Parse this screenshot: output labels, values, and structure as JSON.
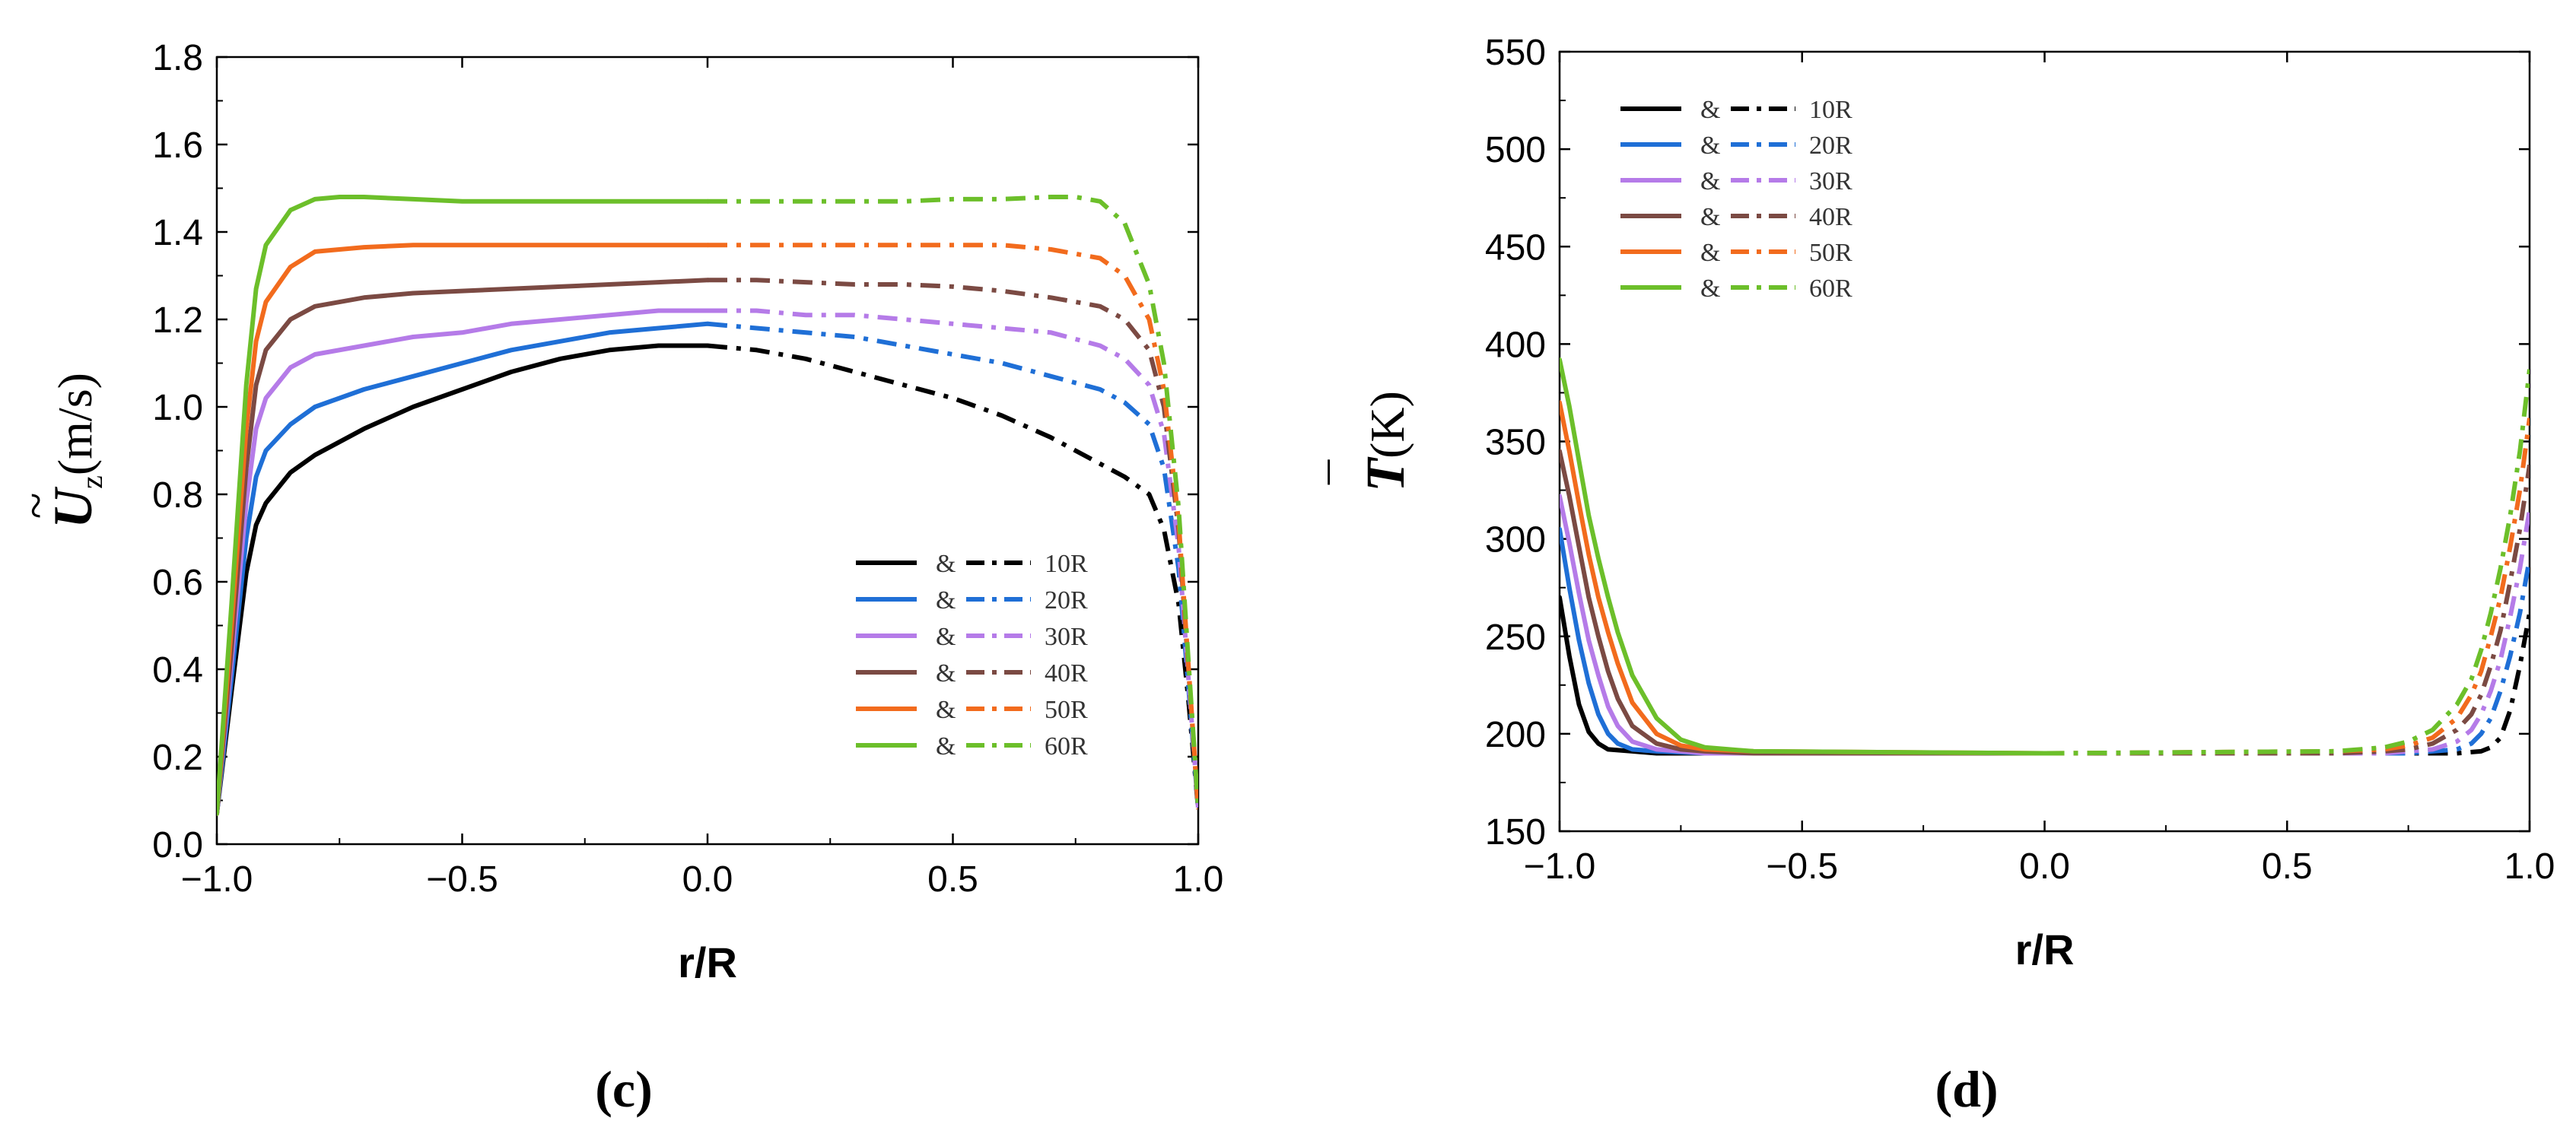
{
  "chart_data": [
    {
      "type": "line",
      "panel_label": "(c)",
      "xlabel": "r/R",
      "ylabel": {
        "symbol": "U",
        "accent": "~",
        "subscript": "z",
        "unit": "(m/s)"
      },
      "xlim": [
        -1.0,
        1.0
      ],
      "ylim": [
        0.0,
        1.8
      ],
      "xticks": [
        "−1.0",
        "−0.5",
        "0.0",
        "0.5",
        "1.0"
      ],
      "xtick_values": [
        -1.0,
        -0.5,
        0.0,
        0.5,
        1.0
      ],
      "yticks": [
        "0.0",
        "0.2",
        "0.4",
        "0.6",
        "0.8",
        "1.0",
        "1.2",
        "1.4",
        "1.6",
        "1.8"
      ],
      "ytick_values": [
        0.0,
        0.2,
        0.4,
        0.6,
        0.8,
        1.0,
        1.2,
        1.4,
        1.6,
        1.8
      ],
      "legend_position": "lower-right",
      "legend_separator": "&",
      "note": "solid line for r/R < 0, dash-dot line for r/R > 0",
      "series": [
        {
          "name": "10R",
          "color": "#000000",
          "x": [
            -1.0,
            -0.97,
            -0.94,
            -0.92,
            -0.9,
            -0.85,
            -0.8,
            -0.7,
            -0.6,
            -0.5,
            -0.4,
            -0.3,
            -0.2,
            -0.1,
            0.0,
            0.1,
            0.2,
            0.3,
            0.4,
            0.5,
            0.6,
            0.7,
            0.8,
            0.85,
            0.9,
            0.93,
            0.96,
            0.98,
            1.0
          ],
          "y": [
            0.07,
            0.35,
            0.62,
            0.73,
            0.78,
            0.85,
            0.89,
            0.95,
            1.0,
            1.04,
            1.08,
            1.11,
            1.13,
            1.14,
            1.14,
            1.13,
            1.11,
            1.08,
            1.05,
            1.02,
            0.98,
            0.93,
            0.87,
            0.84,
            0.8,
            0.72,
            0.55,
            0.33,
            0.08
          ]
        },
        {
          "name": "20R",
          "color": "#1f6fd6",
          "x": [
            -1.0,
            -0.97,
            -0.94,
            -0.92,
            -0.9,
            -0.85,
            -0.8,
            -0.7,
            -0.6,
            -0.5,
            -0.4,
            -0.3,
            -0.2,
            -0.1,
            0.0,
            0.1,
            0.2,
            0.3,
            0.4,
            0.5,
            0.6,
            0.7,
            0.8,
            0.85,
            0.9,
            0.93,
            0.96,
            0.98,
            1.0
          ],
          "y": [
            0.07,
            0.38,
            0.7,
            0.84,
            0.9,
            0.96,
            1.0,
            1.04,
            1.07,
            1.1,
            1.13,
            1.15,
            1.17,
            1.18,
            1.19,
            1.18,
            1.17,
            1.16,
            1.14,
            1.12,
            1.1,
            1.07,
            1.04,
            1.01,
            0.96,
            0.86,
            0.63,
            0.36,
            0.08
          ]
        },
        {
          "name": "30R",
          "color": "#b57be8",
          "x": [
            -1.0,
            -0.97,
            -0.94,
            -0.92,
            -0.9,
            -0.85,
            -0.8,
            -0.7,
            -0.6,
            -0.5,
            -0.4,
            -0.3,
            -0.2,
            -0.1,
            0.0,
            0.1,
            0.2,
            0.3,
            0.4,
            0.5,
            0.6,
            0.7,
            0.8,
            0.85,
            0.9,
            0.93,
            0.96,
            0.98,
            1.0
          ],
          "y": [
            0.07,
            0.42,
            0.78,
            0.95,
            1.02,
            1.09,
            1.12,
            1.14,
            1.16,
            1.17,
            1.19,
            1.2,
            1.21,
            1.22,
            1.22,
            1.22,
            1.21,
            1.21,
            1.2,
            1.19,
            1.18,
            1.17,
            1.14,
            1.11,
            1.05,
            0.94,
            0.68,
            0.38,
            0.08
          ]
        },
        {
          "name": "40R",
          "color": "#7b4a43",
          "x": [
            -1.0,
            -0.97,
            -0.94,
            -0.92,
            -0.9,
            -0.85,
            -0.8,
            -0.7,
            -0.6,
            -0.5,
            -0.4,
            -0.3,
            -0.2,
            -0.1,
            0.0,
            0.1,
            0.2,
            0.3,
            0.4,
            0.5,
            0.6,
            0.7,
            0.8,
            0.85,
            0.9,
            0.93,
            0.96,
            0.98,
            1.0
          ],
          "y": [
            0.07,
            0.45,
            0.86,
            1.05,
            1.13,
            1.2,
            1.23,
            1.25,
            1.26,
            1.265,
            1.27,
            1.275,
            1.28,
            1.285,
            1.29,
            1.29,
            1.285,
            1.28,
            1.28,
            1.275,
            1.265,
            1.25,
            1.23,
            1.2,
            1.13,
            1.0,
            0.72,
            0.4,
            0.08
          ]
        },
        {
          "name": "50R",
          "color": "#f26b1d",
          "x": [
            -1.0,
            -0.97,
            -0.94,
            -0.92,
            -0.9,
            -0.85,
            -0.8,
            -0.7,
            -0.6,
            -0.5,
            -0.4,
            -0.3,
            -0.2,
            -0.1,
            0.0,
            0.1,
            0.2,
            0.3,
            0.4,
            0.5,
            0.6,
            0.7,
            0.8,
            0.85,
            0.9,
            0.93,
            0.96,
            0.98,
            1.0
          ],
          "y": [
            0.07,
            0.5,
            0.95,
            1.15,
            1.24,
            1.32,
            1.355,
            1.365,
            1.37,
            1.37,
            1.37,
            1.37,
            1.37,
            1.37,
            1.37,
            1.37,
            1.37,
            1.37,
            1.37,
            1.37,
            1.37,
            1.36,
            1.34,
            1.3,
            1.2,
            1.04,
            0.74,
            0.41,
            0.08
          ]
        },
        {
          "name": "60R",
          "color": "#6cbf2a",
          "x": [
            -1.0,
            -0.97,
            -0.94,
            -0.92,
            -0.9,
            -0.85,
            -0.8,
            -0.75,
            -0.7,
            -0.6,
            -0.5,
            -0.4,
            -0.3,
            -0.2,
            -0.1,
            0.0,
            0.1,
            0.2,
            0.3,
            0.4,
            0.5,
            0.6,
            0.7,
            0.75,
            0.8,
            0.85,
            0.9,
            0.93,
            0.96,
            0.98,
            1.0
          ],
          "y": [
            0.07,
            0.55,
            1.05,
            1.27,
            1.37,
            1.45,
            1.475,
            1.48,
            1.48,
            1.475,
            1.47,
            1.47,
            1.47,
            1.47,
            1.47,
            1.47,
            1.47,
            1.47,
            1.47,
            1.47,
            1.475,
            1.475,
            1.48,
            1.48,
            1.47,
            1.42,
            1.28,
            1.1,
            0.77,
            0.42,
            0.08
          ]
        }
      ]
    },
    {
      "type": "line",
      "panel_label": "(d)",
      "xlabel": "r/R",
      "ylabel": {
        "symbol": "T",
        "accent": "¯",
        "unit": "(K)"
      },
      "xlim": [
        -1.0,
        1.0
      ],
      "ylim": [
        150,
        550
      ],
      "xticks": [
        "−1.0",
        "−0.5",
        "0.0",
        "0.5",
        "1.0"
      ],
      "xtick_values": [
        -1.0,
        -0.5,
        0.0,
        0.5,
        1.0
      ],
      "yticks": [
        "150",
        "200",
        "250",
        "300",
        "350",
        "400",
        "450",
        "500",
        "550"
      ],
      "ytick_values": [
        150,
        200,
        250,
        300,
        350,
        400,
        450,
        500,
        550
      ],
      "legend_position": "top-left",
      "legend_separator": "&",
      "note": "solid line for r/R < 0, dash-dot line for r/R > 0",
      "series": [
        {
          "name": "10R",
          "color": "#000000",
          "x": [
            -1.0,
            -0.98,
            -0.96,
            -0.94,
            -0.92,
            -0.9,
            -0.85,
            -0.8,
            -0.7,
            -0.5,
            0.0,
            0.5,
            0.8,
            0.85,
            0.9,
            0.92,
            0.94,
            0.96,
            0.98,
            1.0
          ],
          "y": [
            270,
            240,
            215,
            201,
            195,
            192,
            191,
            190,
            190,
            190,
            190,
            190,
            190,
            190,
            191,
            193,
            198,
            212,
            235,
            262
          ]
        },
        {
          "name": "20R",
          "color": "#1f6fd6",
          "x": [
            -1.0,
            -0.98,
            -0.96,
            -0.94,
            -0.92,
            -0.9,
            -0.88,
            -0.85,
            -0.8,
            -0.7,
            -0.5,
            0.0,
            0.5,
            0.75,
            0.8,
            0.85,
            0.88,
            0.9,
            0.92,
            0.94,
            0.96,
            0.98,
            1.0
          ],
          "y": [
            305,
            275,
            248,
            226,
            210,
            200,
            195,
            192,
            191,
            190,
            190,
            190,
            190,
            190,
            191,
            192,
            195,
            200,
            208,
            222,
            240,
            262,
            290
          ]
        },
        {
          "name": "30R",
          "color": "#b57be8",
          "x": [
            -1.0,
            -0.98,
            -0.96,
            -0.94,
            -0.92,
            -0.9,
            -0.88,
            -0.85,
            -0.8,
            -0.75,
            -0.7,
            -0.5,
            0.0,
            0.5,
            0.7,
            0.75,
            0.8,
            0.85,
            0.88,
            0.9,
            0.92,
            0.94,
            0.96,
            0.98,
            1.0
          ],
          "y": [
            322,
            298,
            272,
            248,
            230,
            214,
            204,
            196,
            192,
            191,
            190,
            190,
            190,
            190,
            190,
            191,
            192,
            196,
            202,
            210,
            222,
            238,
            260,
            285,
            315
          ]
        },
        {
          "name": "40R",
          "color": "#7b4a43",
          "x": [
            -1.0,
            -0.98,
            -0.96,
            -0.94,
            -0.92,
            -0.9,
            -0.88,
            -0.85,
            -0.8,
            -0.75,
            -0.7,
            -0.6,
            0.0,
            0.6,
            0.7,
            0.75,
            0.8,
            0.85,
            0.88,
            0.9,
            0.92,
            0.94,
            0.96,
            0.98,
            1.0
          ],
          "y": [
            345,
            322,
            296,
            270,
            250,
            232,
            218,
            204,
            195,
            192,
            191,
            190,
            190,
            190,
            191,
            192,
            195,
            202,
            210,
            220,
            235,
            253,
            278,
            305,
            338
          ]
        },
        {
          "name": "50R",
          "color": "#f26b1d",
          "x": [
            -1.0,
            -0.98,
            -0.96,
            -0.94,
            -0.92,
            -0.9,
            -0.88,
            -0.85,
            -0.8,
            -0.75,
            -0.7,
            -0.6,
            0.0,
            0.6,
            0.7,
            0.75,
            0.8,
            0.85,
            0.88,
            0.9,
            0.92,
            0.94,
            0.96,
            0.98,
            1.0
          ],
          "y": [
            370,
            345,
            318,
            292,
            270,
            252,
            236,
            216,
            200,
            194,
            192,
            191,
            190,
            191,
            192,
            194,
            198,
            208,
            220,
            232,
            250,
            270,
            296,
            325,
            362
          ]
        },
        {
          "name": "60R",
          "color": "#6cbf2a",
          "x": [
            -1.0,
            -0.98,
            -0.96,
            -0.94,
            -0.92,
            -0.9,
            -0.88,
            -0.85,
            -0.8,
            -0.75,
            -0.7,
            -0.6,
            0.0,
            0.6,
            0.7,
            0.75,
            0.8,
            0.85,
            0.88,
            0.9,
            0.92,
            0.94,
            0.96,
            0.98,
            1.0
          ],
          "y": [
            392,
            368,
            340,
            312,
            290,
            270,
            252,
            230,
            208,
            197,
            193,
            191,
            190,
            191,
            193,
            196,
            202,
            215,
            228,
            243,
            262,
            285,
            312,
            345,
            387
          ]
        }
      ]
    }
  ]
}
